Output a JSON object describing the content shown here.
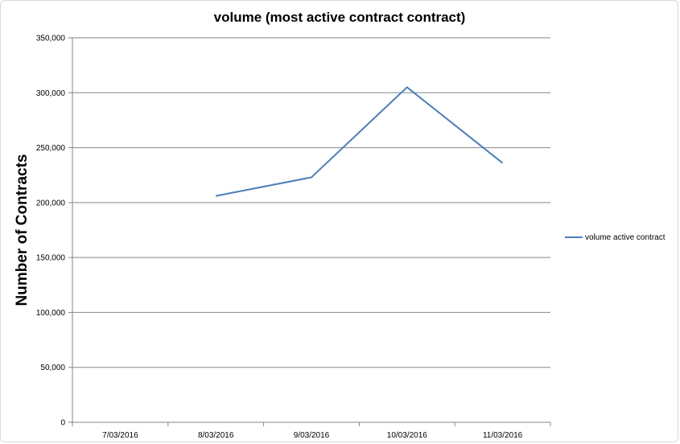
{
  "chart_data": {
    "type": "line",
    "title": "volume  (most active contract contract)",
    "xlabel": "",
    "ylabel": "Number of Contracts",
    "categories": [
      "7/03/2016",
      "8/03/2016",
      "9/03/2016",
      "10/03/2016",
      "11/03/2016"
    ],
    "series": [
      {
        "name": "volume active contract",
        "values": [
          null,
          206000,
          223000,
          305000,
          236000
        ]
      }
    ],
    "ylim": [
      0,
      350000
    ],
    "yticks": [
      0,
      50000,
      100000,
      150000,
      200000,
      250000,
      300000,
      350000
    ],
    "ytick_labels": [
      "0",
      "50,000",
      "100,000",
      "150,000",
      "200,000",
      "250,000",
      "300,000",
      "350,000"
    ],
    "grid": true,
    "legend_position": "right",
    "colors": {
      "series": "#4a7ebb",
      "grid": "#868686",
      "axis": "#868686"
    }
  }
}
